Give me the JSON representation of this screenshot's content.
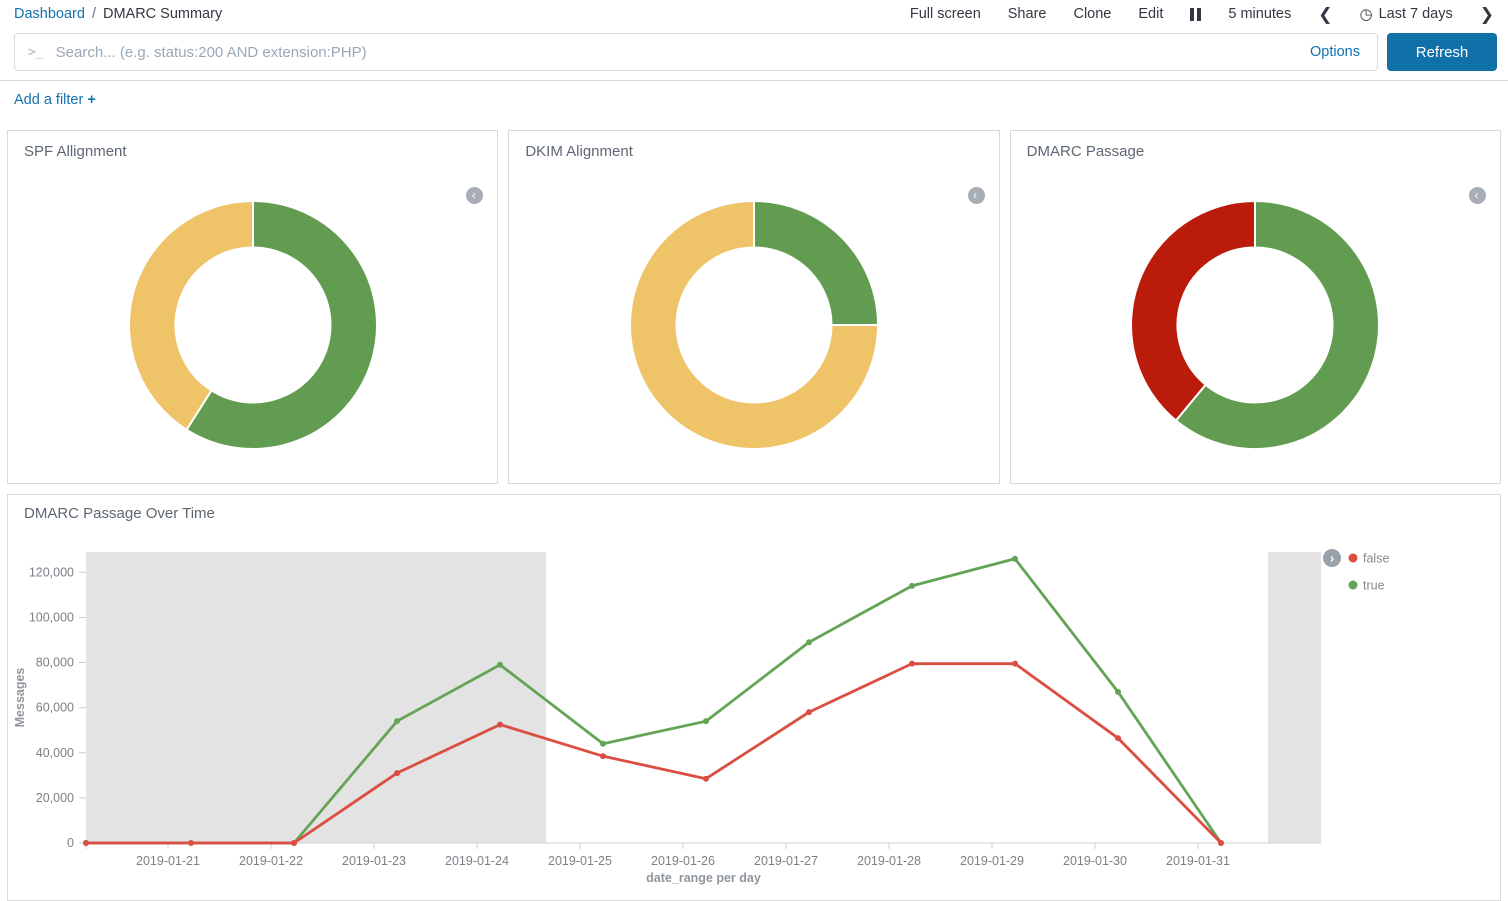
{
  "nav": {
    "breadcrumb_root": "Dashboard",
    "breadcrumb_sep": "/",
    "breadcrumb_current": "DMARC Summary",
    "menu": [
      "Full screen",
      "Share",
      "Clone",
      "Edit"
    ],
    "refresh_interval": "5 minutes",
    "time_range": "Last 7 days"
  },
  "search": {
    "prompt": ">_",
    "placeholder": "Search... (e.g. status:200 AND extension:PHP)",
    "options_label": "Options",
    "refresh_label": "Refresh"
  },
  "filters": {
    "add_filter_label": "Add a filter",
    "plus": "+"
  },
  "colors": {
    "link_blue": "#1271AE",
    "refresh_button_blue": "#1070A8",
    "donut_green": "#629C50",
    "donut_yellow": "#EFC368",
    "donut_red": "#BB1B0B",
    "line_red": "#DB4E42",
    "line_green": "#64A456",
    "shaded_region_gray": "#E3E3E3"
  },
  "chart_data": [
    {
      "type": "pie",
      "title": "SPF Allignment",
      "donut": true,
      "start": "top",
      "direction": "clockwise",
      "slices": [
        {
          "color": "#629C50",
          "value_pct": 59
        },
        {
          "color": "#EFC368",
          "value_pct": 41
        }
      ]
    },
    {
      "type": "pie",
      "title": "DKIM Alignment",
      "donut": true,
      "start": "top",
      "direction": "clockwise",
      "slices": [
        {
          "color": "#629C50",
          "value_pct": 25
        },
        {
          "color": "#EFC368",
          "value_pct": 75
        }
      ]
    },
    {
      "type": "pie",
      "title": "DMARC Passage",
      "donut": true,
      "start": "top",
      "direction": "clockwise",
      "slices": [
        {
          "color": "#629C50",
          "value_pct": 61
        },
        {
          "color": "#BB1B0B",
          "value_pct": 39
        }
      ]
    },
    {
      "type": "line",
      "title": "DMARC Passage Over Time",
      "xlabel": "date_range per day",
      "ylabel": "Messages",
      "legend_position": "right",
      "x_categories": [
        "2019-01-21",
        "2019-01-22",
        "2019-01-23",
        "2019-01-24",
        "2019-01-25",
        "2019-01-26",
        "2019-01-27",
        "2019-01-28",
        "2019-01-29",
        "2019-01-30",
        "2019-01-31"
      ],
      "yticks": [
        0,
        20000,
        40000,
        60000,
        80000,
        100000,
        120000
      ],
      "ylim": [
        0,
        129000
      ],
      "grid": false,
      "series": [
        {
          "name": "false",
          "color": "#DB4E42",
          "extends_to_left_edge": true,
          "points": [
            [
              "2019-01-21",
              0
            ],
            [
              "2019-01-22",
              0
            ],
            [
              "2019-01-23",
              31000
            ],
            [
              "2019-01-24",
              52500
            ],
            [
              "2019-01-25",
              38500
            ],
            [
              "2019-01-26",
              28500
            ],
            [
              "2019-01-27",
              58000
            ],
            [
              "2019-01-28",
              79500
            ],
            [
              "2019-01-29",
              79500
            ],
            [
              "2019-01-30",
              46500
            ],
            [
              "2019-01-31",
              0
            ]
          ]
        },
        {
          "name": "true",
          "color": "#64A456",
          "extends_to_left_edge": true,
          "points": [
            [
              "2019-01-22",
              0
            ],
            [
              "2019-01-23",
              54000
            ],
            [
              "2019-01-24",
              79000
            ],
            [
              "2019-01-25",
              44000
            ],
            [
              "2019-01-26",
              54000
            ],
            [
              "2019-01-27",
              89000
            ],
            [
              "2019-01-28",
              114000
            ],
            [
              "2019-01-29",
              126000
            ],
            [
              "2019-01-30",
              67000
            ],
            [
              "2019-01-31",
              0
            ]
          ]
        }
      ],
      "shaded_x_fraction_ranges": [
        [
          0,
          0.3725
        ],
        [
          0.957,
          1.0
        ]
      ]
    }
  ]
}
